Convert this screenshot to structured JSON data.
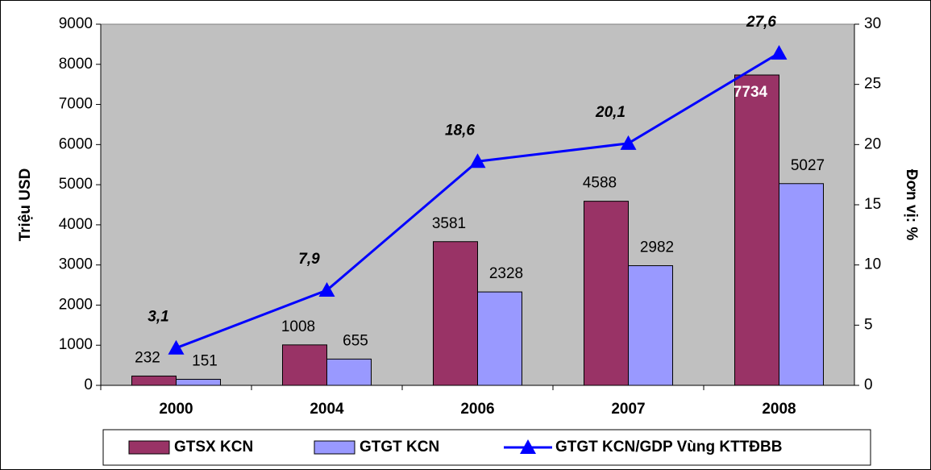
{
  "chart_data": {
    "type": "bar",
    "y_label": "Triệu USD",
    "y2_label": "Đơn vị: %",
    "categories": [
      "2000",
      "2004",
      "2006",
      "2007",
      "2008"
    ],
    "series": [
      {
        "name": "GTSX KCN",
        "color": "#993366",
        "values": [
          232,
          1008,
          3581,
          4588,
          7734
        ]
      },
      {
        "name": "GTGT KCN",
        "color": "#9999ff",
        "values": [
          151,
          655,
          2328,
          2982,
          5027
        ]
      },
      {
        "name": "GTGT KCN/GDP Vùng KTTĐBB",
        "color": "#0000ff",
        "type": "line",
        "axis": "y2",
        "values": [
          3.1,
          7.9,
          18.6,
          20.1,
          27.6
        ],
        "value_labels": [
          "3,1",
          "7,9",
          "18,6",
          "20,1",
          "27,6"
        ]
      }
    ],
    "ylim": [
      0,
      9000
    ],
    "yticks": [
      0,
      1000,
      2000,
      3000,
      4000,
      5000,
      6000,
      7000,
      8000,
      9000
    ],
    "y2lim": [
      0,
      30
    ],
    "y2ticks": [
      0,
      5,
      10,
      15,
      20,
      25,
      30
    ],
    "legend": "bottom",
    "plot_background": "#c0c0c0"
  }
}
